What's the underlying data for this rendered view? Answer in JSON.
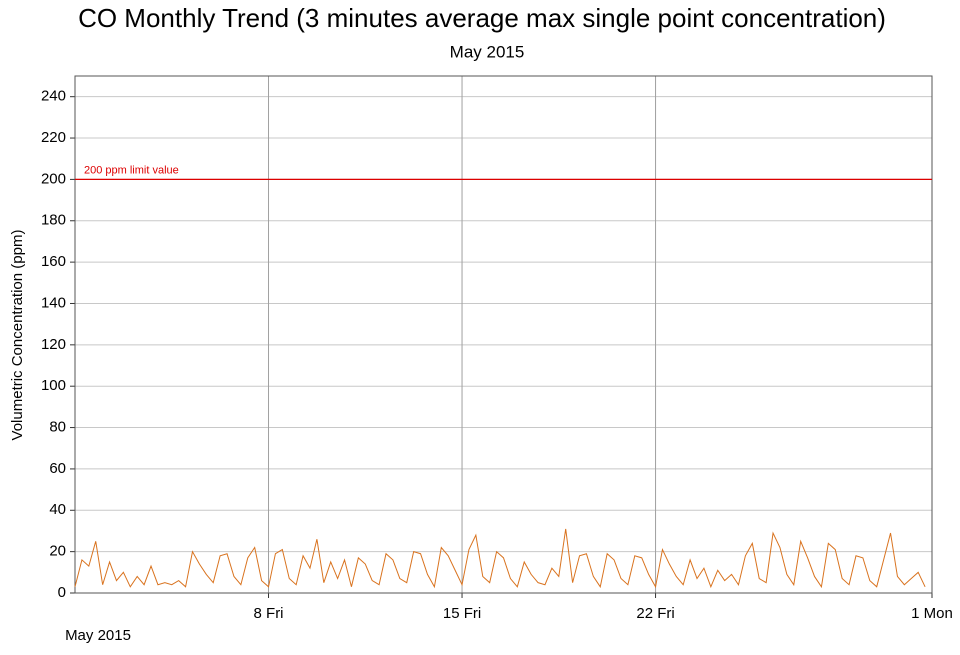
{
  "chart_data": {
    "type": "line",
    "title": "CO Monthly Trend (3 minutes average max single point concentration)",
    "subtitle": "May 2015",
    "x_label": "May 2015",
    "y_label": "Volumetric Concentration (ppm)",
    "xlim": [
      1,
      32
    ],
    "xticks": [
      {
        "value": 8,
        "label": "8 Fri"
      },
      {
        "value": 15,
        "label": "15 Fri"
      },
      {
        "value": 22,
        "label": "22 Fri"
      },
      {
        "value": 32,
        "label": "1 Mon"
      }
    ],
    "ylim": [
      0,
      250
    ],
    "yticks": [
      0,
      20,
      40,
      60,
      80,
      100,
      120,
      140,
      160,
      180,
      200,
      220,
      240
    ],
    "grid": true,
    "reference_line": {
      "y": 200,
      "label": "200 ppm limit value",
      "color": "#dd0000"
    },
    "series": [
      {
        "color": "#d9731f",
        "x": [
          1,
          1.25,
          1.5,
          1.75,
          2,
          2.25,
          2.5,
          2.75,
          3,
          3.25,
          3.5,
          3.75,
          4,
          4.25,
          4.5,
          4.75,
          5,
          5.25,
          5.5,
          5.75,
          6,
          6.25,
          6.5,
          6.75,
          7,
          7.25,
          7.5,
          7.75,
          8,
          8.25,
          8.5,
          8.75,
          9,
          9.25,
          9.5,
          9.75,
          10,
          10.25,
          10.5,
          10.75,
          11,
          11.25,
          11.5,
          11.75,
          12,
          12.25,
          12.5,
          12.75,
          13,
          13.25,
          13.5,
          13.75,
          14,
          14.25,
          14.5,
          14.75,
          15,
          15.25,
          15.5,
          15.75,
          16,
          16.25,
          16.5,
          16.75,
          17,
          17.25,
          17.5,
          17.75,
          18,
          18.25,
          18.5,
          18.75,
          19,
          19.25,
          19.5,
          19.75,
          20,
          20.25,
          20.5,
          20.75,
          21,
          21.25,
          21.5,
          21.75,
          22,
          22.25,
          22.5,
          22.75,
          23,
          23.25,
          23.5,
          23.75,
          24,
          24.25,
          24.5,
          24.75,
          25,
          25.25,
          25.5,
          25.75,
          26,
          26.25,
          26.5,
          26.75,
          27,
          27.25,
          27.5,
          27.75,
          28,
          28.25,
          28.5,
          28.75,
          29,
          29.25,
          29.5,
          29.75,
          30,
          30.25,
          30.5,
          30.75,
          31,
          31.25,
          31.5,
          31.75
        ],
        "values": [
          3,
          16,
          13,
          25,
          4,
          15,
          6,
          10,
          3,
          8,
          4,
          13,
          4,
          5,
          4,
          6,
          3,
          20,
          14,
          9,
          5,
          18,
          19,
          8,
          4,
          17,
          22,
          6,
          3,
          19,
          21,
          7,
          4,
          18,
          12,
          26,
          5,
          15,
          7,
          16,
          3,
          17,
          14,
          6,
          4,
          19,
          16,
          7,
          5,
          20,
          19,
          9,
          3,
          22,
          18,
          11,
          4,
          21,
          28,
          8,
          5,
          20,
          17,
          7,
          3,
          15,
          9,
          5,
          4,
          12,
          8,
          31,
          5,
          18,
          19,
          8,
          3,
          19,
          16,
          7,
          4,
          18,
          17,
          9,
          3,
          21,
          14,
          8,
          4,
          16,
          7,
          12,
          3,
          11,
          6,
          9,
          4,
          18,
          24,
          7,
          5,
          29,
          22,
          9,
          4,
          25,
          17,
          8,
          3,
          24,
          21,
          7,
          4,
          18,
          17,
          6,
          3,
          16,
          29,
          8,
          4,
          7,
          10,
          3
        ]
      }
    ]
  }
}
